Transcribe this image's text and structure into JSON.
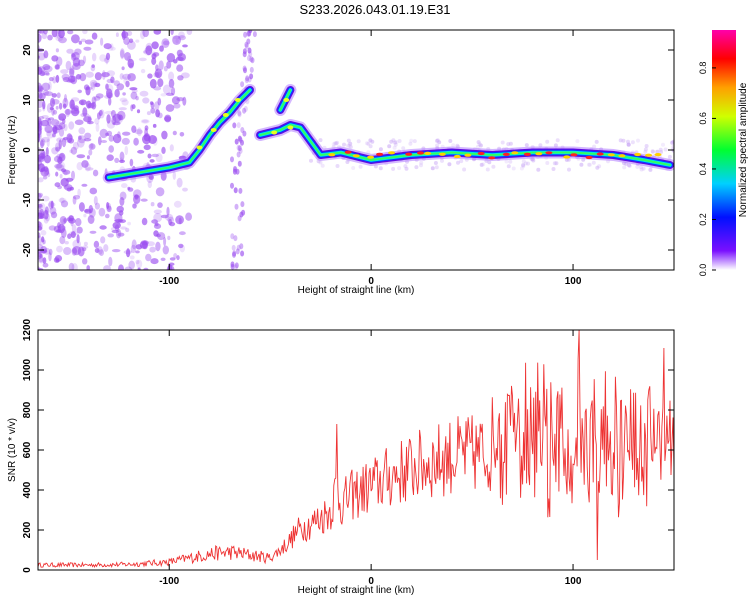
{
  "title": "S233.2026.043.01.19.E31",
  "colors": {
    "snr_line": "#ee3333",
    "ridge_low": "#6a00ff",
    "ridge_high": "#ff0000",
    "noise": "#9b4ef0"
  },
  "chart_data": [
    {
      "type": "heatmap",
      "name": "spectrogram",
      "xlabel": "Height of straight line (km)",
      "ylabel": "Frequency (Hz)",
      "xlim": [
        -165,
        150
      ],
      "ylim": [
        -24,
        24
      ],
      "xticks": [
        -100,
        0,
        100
      ],
      "xtick_labels": [
        "-100",
        "0",
        "100"
      ],
      "yticks": [
        20,
        10,
        0,
        -10,
        -20
      ],
      "ytick_labels": [
        "20",
        "10",
        "0",
        "-10",
        "-20"
      ],
      "colorbar": {
        "label": "Normalized spectral amplitude",
        "range": [
          0.0,
          0.95
        ],
        "ticks": [
          0.0,
          0.2,
          0.4,
          0.6,
          0.8
        ],
        "tick_labels": [
          "0.0",
          "0.2",
          "0.4",
          "0.6",
          "0.8"
        ]
      },
      "ridge": [
        [
          -130,
          -5.5
        ],
        [
          -115,
          -4.5
        ],
        [
          -100,
          -3.5
        ],
        [
          -90,
          -2.5
        ],
        [
          -85,
          0
        ],
        [
          -80,
          3
        ],
        [
          -75,
          5.5
        ],
        [
          -70,
          7.5
        ],
        [
          -65,
          10
        ],
        [
          -60,
          12
        ],
        [
          -55,
          3
        ],
        [
          -50,
          3.5
        ],
        [
          -45,
          4
        ],
        [
          -40,
          5
        ],
        [
          -35,
          4.5
        ],
        [
          -25,
          -1
        ],
        [
          -15,
          -0.5
        ],
        [
          0,
          -2
        ],
        [
          20,
          -1
        ],
        [
          40,
          -0.5
        ],
        [
          60,
          -1
        ],
        [
          80,
          -0.5
        ],
        [
          100,
          -0.5
        ],
        [
          120,
          -1
        ],
        [
          135,
          -2
        ],
        [
          148,
          -3
        ]
      ],
      "branch_upper": [
        [
          -45,
          8
        ],
        [
          -40,
          12
        ]
      ]
    },
    {
      "type": "line",
      "name": "snr",
      "xlabel": "Height of straight line (km)",
      "ylabel": "SNR (10 * v/v)",
      "xlim": [
        -165,
        150
      ],
      "ylim": [
        0,
        1200
      ],
      "xticks": [
        -100,
        0,
        100
      ],
      "xtick_labels": [
        "-100",
        "0",
        "100"
      ],
      "yticks": [
        0,
        200,
        400,
        600,
        800,
        1000,
        1200
      ],
      "ytick_labels": [
        "0",
        "200",
        "400",
        "600",
        "800",
        "1000",
        "1200"
      ],
      "series": [
        {
          "name": "SNR",
          "x": [
            -165,
            -140,
            -120,
            -100,
            -90,
            -80,
            -70,
            -60,
            -50,
            -45,
            -40,
            -35,
            -30,
            -25,
            -20,
            -17,
            -15,
            -10,
            0,
            10,
            20,
            30,
            40,
            50,
            60,
            70,
            80,
            90,
            100,
            110,
            120,
            130,
            140,
            150
          ],
          "values": [
            25,
            25,
            28,
            40,
            60,
            80,
            90,
            75,
            60,
            100,
            150,
            210,
            230,
            260,
            300,
            420,
            330,
            370,
            420,
            470,
            510,
            540,
            570,
            580,
            590,
            600,
            610,
            610,
            620,
            620,
            600,
            610,
            620,
            620
          ],
          "annotations": [
            {
              "x": -17,
              "value": 730
            },
            {
              "x": 103,
              "value": 1200
            },
            {
              "x": 112,
              "value": 50
            },
            {
              "x": 145,
              "value": 1110
            }
          ]
        }
      ]
    }
  ]
}
